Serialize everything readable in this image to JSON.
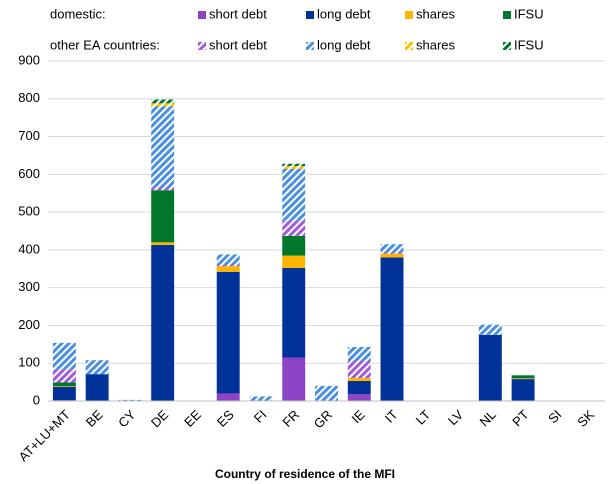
{
  "chart_data": {
    "type": "stacked-bar",
    "legend_rows": [
      "domestic:",
      "other EA countries:"
    ],
    "x_label": "Country of residence of the MFI",
    "categories": [
      "AT+LU+MT",
      "BE",
      "CY",
      "DE",
      "EE",
      "ES",
      "FI",
      "FR",
      "GR",
      "IE",
      "IT",
      "LT",
      "LV",
      "NL",
      "PT",
      "SI",
      "SK"
    ],
    "series": [
      {
        "name": "short debt",
        "color": "#8e44c7",
        "hatch": false,
        "values": [
          2,
          1,
          0,
          0,
          0,
          20,
          0,
          115,
          0,
          18,
          0,
          0,
          0,
          0,
          0,
          0,
          0
        ]
      },
      {
        "name": "long debt",
        "color": "#003299",
        "hatch": false,
        "values": [
          35,
          70,
          0,
          413,
          0,
          322,
          0,
          237,
          0,
          35,
          380,
          0,
          0,
          175,
          58,
          0,
          0
        ]
      },
      {
        "name": "shares",
        "color": "#ffb400",
        "hatch": false,
        "values": [
          2,
          0,
          0,
          7,
          0,
          15,
          0,
          33,
          0,
          8,
          10,
          0,
          0,
          0,
          2,
          0,
          0
        ]
      },
      {
        "name": "IFSU",
        "color": "#00782b",
        "hatch": false,
        "values": [
          10,
          0,
          0,
          138,
          0,
          0,
          0,
          52,
          0,
          0,
          0,
          0,
          0,
          0,
          8,
          0,
          0
        ]
      },
      {
        "name": "short debt",
        "color": "#a25ad8",
        "hatch": true,
        "values": [
          35,
          0,
          0,
          7,
          0,
          3,
          0,
          40,
          0,
          45,
          3,
          0,
          0,
          0,
          0,
          0,
          0
        ]
      },
      {
        "name": "long debt",
        "color": "#4a8fe0",
        "hatch": true,
        "values": [
          70,
          37,
          3,
          215,
          0,
          28,
          12,
          138,
          40,
          37,
          22,
          0,
          0,
          27,
          0,
          0,
          0
        ]
      },
      {
        "name": "shares",
        "color": "#ffc000",
        "hatch": true,
        "values": [
          0,
          0,
          0,
          8,
          0,
          0,
          0,
          7,
          0,
          0,
          0,
          0,
          0,
          0,
          0,
          0,
          0
        ]
      },
      {
        "name": "IFSU",
        "color": "#00782b",
        "hatch": true,
        "values": [
          0,
          0,
          0,
          10,
          0,
          0,
          0,
          6,
          0,
          0,
          0,
          0,
          0,
          0,
          0,
          0,
          0
        ]
      }
    ],
    "ylim": [
      0,
      900
    ],
    "yticks": [
      0,
      100,
      200,
      300,
      400,
      500,
      600,
      700,
      800,
      900
    ],
    "grid": true
  }
}
